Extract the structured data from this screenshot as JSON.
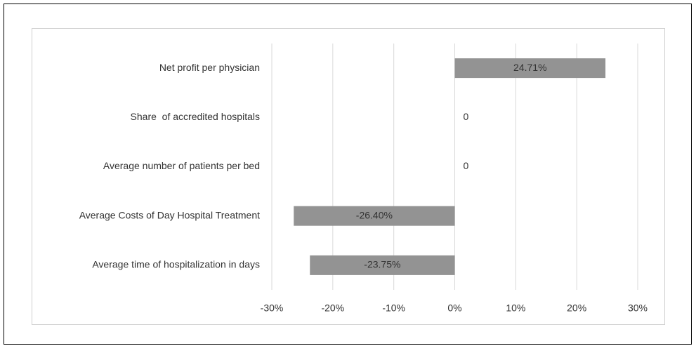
{
  "chart_data": {
    "type": "hbar",
    "categories": [
      "Net profit per physician",
      "Share  of accredited hospitals",
      "Average number of patients per bed",
      "Average Costs of Day Hospital Treatment",
      "Average time of hospitalization in days"
    ],
    "values": [
      24.71,
      0,
      0,
      -26.4,
      -23.75
    ],
    "value_labels": [
      "24.71%",
      "0",
      "0",
      "-26.40%",
      "-23.75%"
    ],
    "color": "#939393",
    "xlim": [
      -30,
      30
    ],
    "xticks": [
      {
        "value": -30,
        "label": "-30%"
      },
      {
        "value": -20,
        "label": "-20%"
      },
      {
        "value": -10,
        "label": "-10%"
      },
      {
        "value": 0,
        "label": "0%"
      },
      {
        "value": 10,
        "label": "10%"
      },
      {
        "value": 20,
        "label": "20%"
      },
      {
        "value": 30,
        "label": "30%"
      }
    ],
    "grid": true
  }
}
